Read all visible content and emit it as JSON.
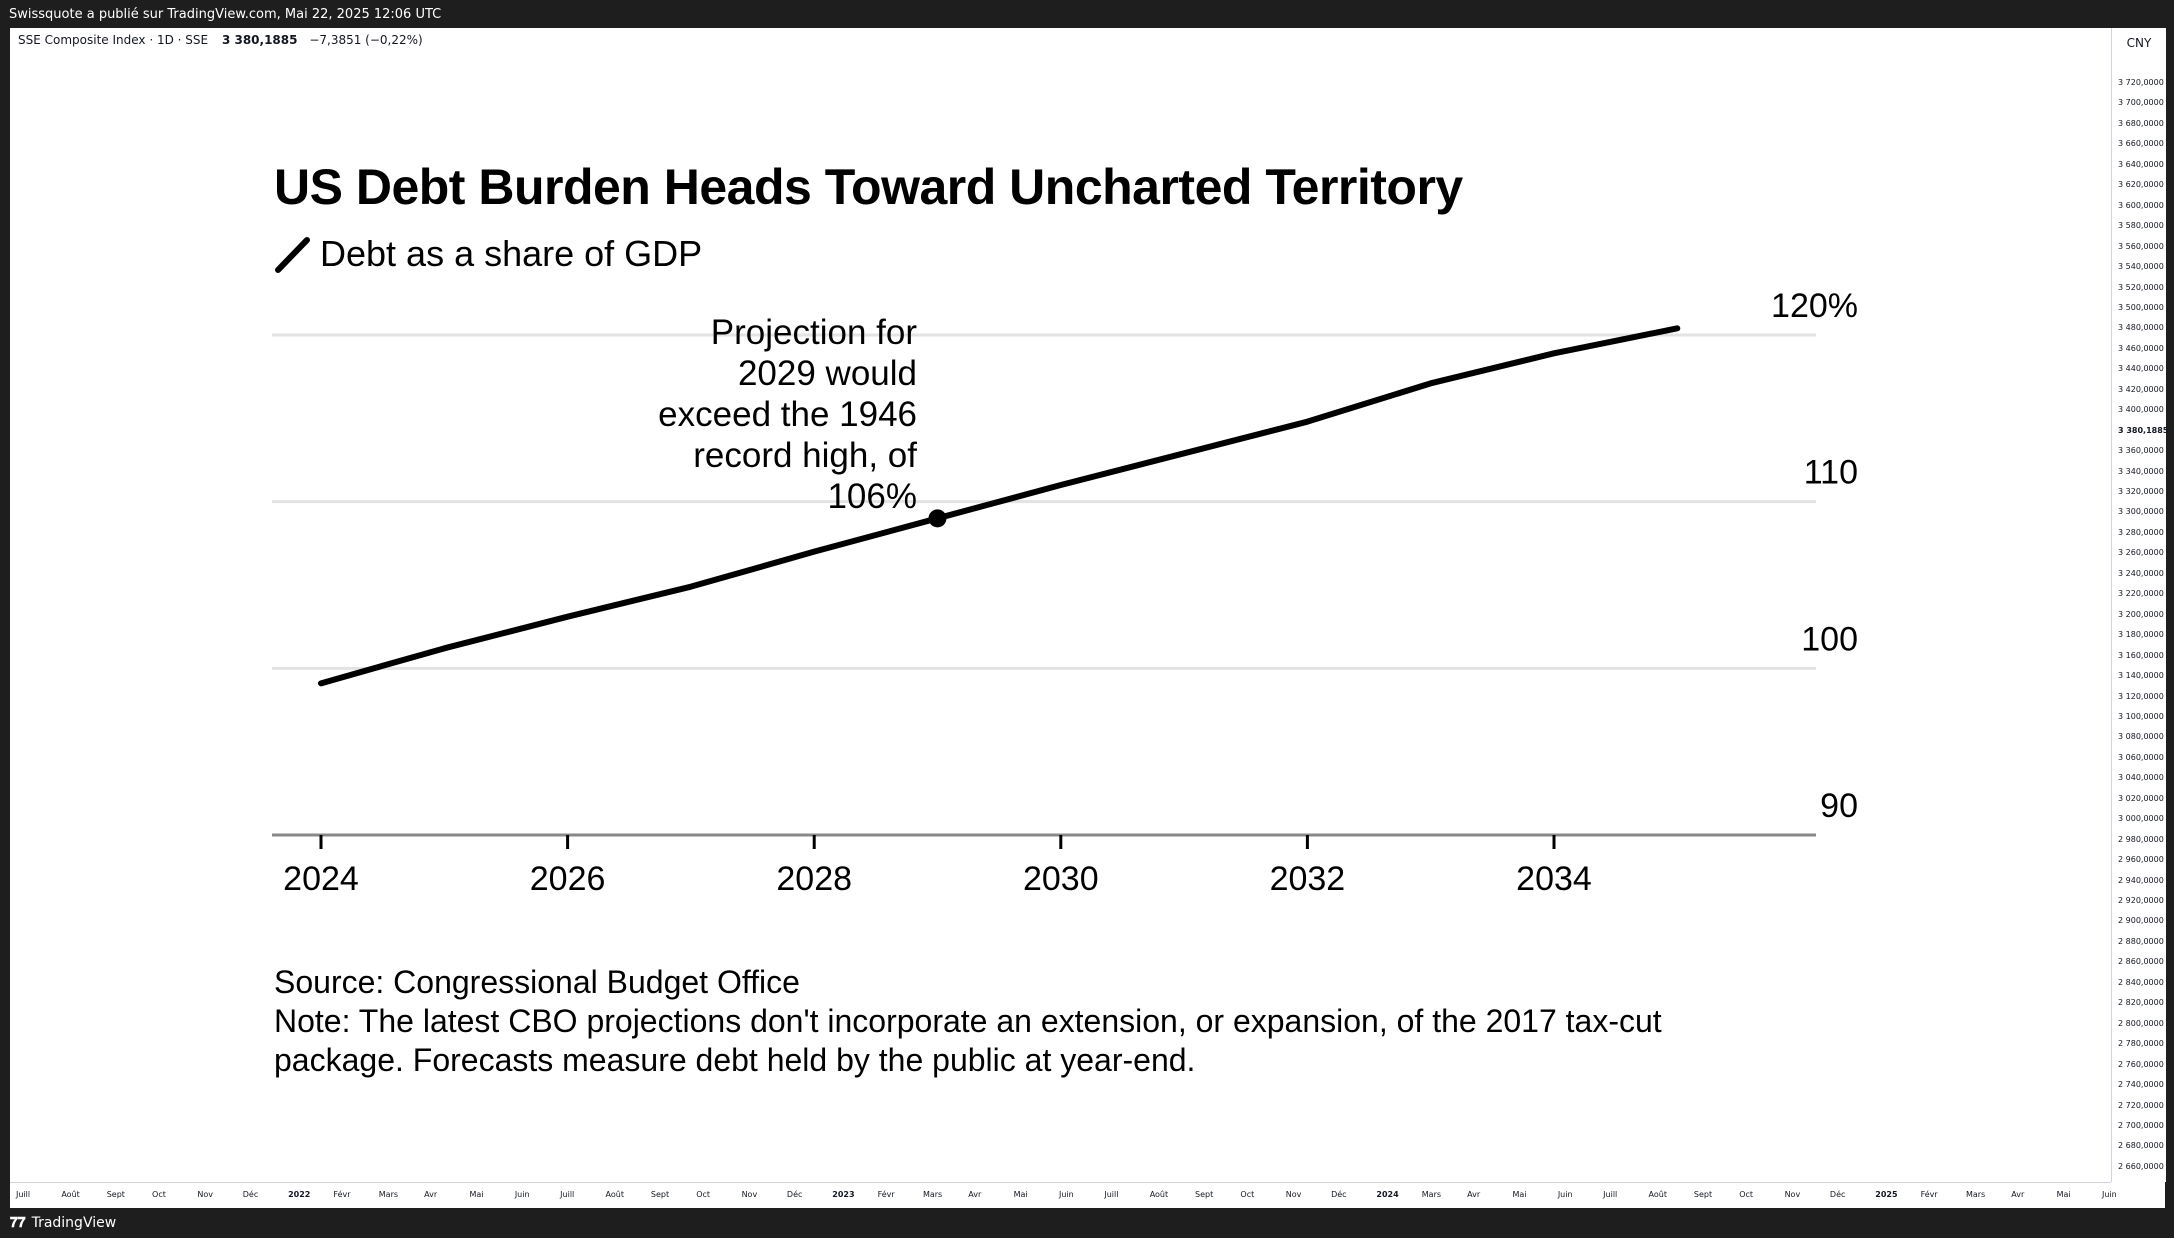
{
  "header": {
    "publish_line": "Swissquote a publié sur TradingView.com, Mai 22, 2025 12:06 UTC"
  },
  "instrument": {
    "name": "SSE Composite Index · 1D · SSE",
    "price": "3 380,1885",
    "change": "−7,3851 (−0,22%)",
    "currency": "CNY"
  },
  "price_axis": {
    "ticks": [
      "3 720,0000",
      "3 700,0000",
      "3 680,0000",
      "3 660,0000",
      "3 640,0000",
      "3 620,0000",
      "3 600,0000",
      "3 580,0000",
      "3 560,0000",
      "3 540,0000",
      "3 520,0000",
      "3 500,0000",
      "3 480,0000",
      "3 460,0000",
      "3 440,0000",
      "3 420,0000",
      "3 400,0000",
      "3 380,1885",
      "3 360,0000",
      "3 340,0000",
      "3 320,0000",
      "3 300,0000",
      "3 280,0000",
      "3 260,0000",
      "3 240,0000",
      "3 220,0000",
      "3 200,0000",
      "3 180,0000",
      "3 160,0000",
      "3 140,0000",
      "3 120,0000",
      "3 100,0000",
      "3 080,0000",
      "3 060,0000",
      "3 040,0000",
      "3 020,0000",
      "3 000,0000",
      "2 980,0000",
      "2 960,0000",
      "2 940,0000",
      "2 920,0000",
      "2 900,0000",
      "2 880,0000",
      "2 860,0000",
      "2 840,0000",
      "2 820,0000",
      "2 800,0000",
      "2 780,0000",
      "2 760,0000",
      "2 740,0000",
      "2 720,0000",
      "2 700,0000",
      "2 680,0000",
      "2 660,0000"
    ]
  },
  "time_axis": {
    "ticks": [
      {
        "label": "Juill",
        "year": false
      },
      {
        "label": "Août",
        "year": false
      },
      {
        "label": "Sept",
        "year": false
      },
      {
        "label": "Oct",
        "year": false
      },
      {
        "label": "Nov",
        "year": false
      },
      {
        "label": "Déc",
        "year": false
      },
      {
        "label": "2022",
        "year": true
      },
      {
        "label": "Févr",
        "year": false
      },
      {
        "label": "Mars",
        "year": false
      },
      {
        "label": "Avr",
        "year": false
      },
      {
        "label": "Mai",
        "year": false
      },
      {
        "label": "Juin",
        "year": false
      },
      {
        "label": "Juill",
        "year": false
      },
      {
        "label": "Août",
        "year": false
      },
      {
        "label": "Sept",
        "year": false
      },
      {
        "label": "Oct",
        "year": false
      },
      {
        "label": "Nov",
        "year": false
      },
      {
        "label": "Déc",
        "year": false
      },
      {
        "label": "2023",
        "year": true
      },
      {
        "label": "Févr",
        "year": false
      },
      {
        "label": "Mars",
        "year": false
      },
      {
        "label": "Avr",
        "year": false
      },
      {
        "label": "Mai",
        "year": false
      },
      {
        "label": "Juin",
        "year": false
      },
      {
        "label": "Juill",
        "year": false
      },
      {
        "label": "Août",
        "year": false
      },
      {
        "label": "Sept",
        "year": false
      },
      {
        "label": "Oct",
        "year": false
      },
      {
        "label": "Nov",
        "year": false
      },
      {
        "label": "Déc",
        "year": false
      },
      {
        "label": "2024",
        "year": true
      },
      {
        "label": "Mars",
        "year": false
      },
      {
        "label": "Avr",
        "year": false
      },
      {
        "label": "Mai",
        "year": false
      },
      {
        "label": "Juin",
        "year": false
      },
      {
        "label": "Juill",
        "year": false
      },
      {
        "label": "Août",
        "year": false
      },
      {
        "label": "Sept",
        "year": false
      },
      {
        "label": "Oct",
        "year": false
      },
      {
        "label": "Nov",
        "year": false
      },
      {
        "label": "Déc",
        "year": false
      },
      {
        "label": "2025",
        "year": true
      },
      {
        "label": "Févr",
        "year": false
      },
      {
        "label": "Mars",
        "year": false
      },
      {
        "label": "Avr",
        "year": false
      },
      {
        "label": "Mai",
        "year": false
      },
      {
        "label": "Juin",
        "year": false
      }
    ]
  },
  "chart_data": {
    "type": "line",
    "title": "US Debt Burden Heads Toward Uncharted Territory",
    "subtitle": "Debt as a share of GDP",
    "x": [
      2024,
      2025,
      2026,
      2027,
      2028,
      2029,
      2030,
      2031,
      2032,
      2033,
      2034,
      2035
    ],
    "series": [
      {
        "name": "Debt as a share of GDP",
        "values": [
          99.1,
          101.2,
          103.1,
          104.9,
          107.0,
          109.0,
          111.0,
          112.9,
          114.8,
          117.1,
          118.9,
          120.4
        ]
      }
    ],
    "xlim": [
      2023.8,
      2036.3
    ],
    "ylim": [
      90,
      120
    ],
    "xticks": [
      2024,
      2026,
      2028,
      2030,
      2032,
      2034
    ],
    "xtick_labels": [
      "2024",
      "2026",
      "2028",
      "2030",
      "2032",
      "2034"
    ],
    "yticks": [
      90,
      100,
      110,
      120
    ],
    "ytick_labels": [
      "90",
      "100",
      "110",
      "120%"
    ],
    "grid": true,
    "line_color": "#000000",
    "highlight_point": {
      "x": 2029,
      "y": 109.0
    },
    "annotation": {
      "lines": [
        "Projection for",
        "2029 would",
        "exceed the 1946",
        "record high, of",
        "106%"
      ]
    },
    "source": "Source: Congressional Budget Office",
    "note": "Note: The latest CBO projections don't incorporate an extension, or expansion, of the 2017 tax-cut package. Forecasts measure debt held by the public at year-end."
  },
  "footer": {
    "brand": "TradingView"
  }
}
